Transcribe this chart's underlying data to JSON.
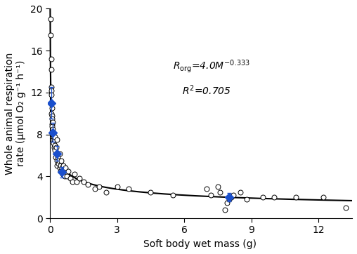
{
  "open_circles_x": [
    0.03,
    0.03,
    0.05,
    0.05,
    0.05,
    0.07,
    0.07,
    0.07,
    0.07,
    0.09,
    0.09,
    0.09,
    0.1,
    0.1,
    0.11,
    0.11,
    0.12,
    0.12,
    0.13,
    0.15,
    0.15,
    0.16,
    0.17,
    0.18,
    0.2,
    0.2,
    0.22,
    0.25,
    0.27,
    0.3,
    0.3,
    0.32,
    0.35,
    0.38,
    0.4,
    0.42,
    0.45,
    0.47,
    0.48,
    0.5,
    0.52,
    0.55,
    0.58,
    0.6,
    0.65,
    0.7,
    0.75,
    0.8,
    0.9,
    1.0,
    1.1,
    1.2,
    1.3,
    1.5,
    1.7,
    2.0,
    2.2,
    2.5,
    3.0,
    3.5,
    4.5,
    5.5,
    7.0,
    7.2,
    7.5,
    7.6,
    7.8,
    7.9,
    8.0,
    8.1,
    8.2,
    8.5,
    8.8,
    9.5,
    10.0,
    11.0,
    12.2,
    13.2
  ],
  "open_circles_y": [
    19.0,
    17.5,
    15.2,
    14.2,
    12.5,
    12.2,
    11.8,
    11.0,
    10.0,
    10.5,
    9.8,
    9.0,
    9.5,
    8.8,
    9.2,
    8.2,
    8.0,
    7.5,
    8.5,
    7.8,
    7.2,
    8.0,
    6.8,
    7.5,
    7.8,
    7.0,
    6.5,
    5.8,
    6.8,
    5.5,
    7.5,
    5.0,
    5.8,
    5.2,
    5.5,
    4.8,
    6.2,
    5.0,
    4.5,
    5.5,
    4.8,
    4.2,
    5.0,
    4.5,
    4.0,
    4.8,
    4.0,
    4.5,
    3.8,
    3.5,
    4.2,
    3.5,
    3.8,
    3.5,
    3.2,
    2.8,
    3.0,
    2.5,
    3.0,
    2.8,
    2.5,
    2.2,
    2.8,
    2.2,
    3.0,
    2.5,
    0.8,
    1.5,
    1.8,
    2.0,
    2.2,
    2.5,
    1.8,
    2.0,
    2.0,
    2.0,
    2.0,
    1.0
  ],
  "blue_diamonds_x": [
    0.07,
    0.12,
    0.3,
    0.52,
    8.0
  ],
  "blue_diamonds_y": [
    11.0,
    8.2,
    6.2,
    4.4,
    2.0
  ],
  "blue_diamonds_yerr": [
    1.5,
    0.9,
    0.7,
    0.5,
    0.4
  ],
  "fit_coeff": 4.0,
  "fit_exp": -0.333,
  "r_squared": 0.705,
  "xlim": [
    -0.1,
    13.5
  ],
  "ylim": [
    0,
    20
  ],
  "xticks": [
    0,
    3,
    6,
    9,
    12
  ],
  "yticks": [
    0,
    4,
    8,
    12,
    16,
    20
  ],
  "xlabel": "Soft body wet mass (g)",
  "ylabel": "Whole animal respiration\nrate (μmol O₂ g⁻¹ h⁻¹)",
  "open_circle_color": "#ffffff",
  "open_circle_edgecolor": "#000000",
  "blue_diamond_color": "#1a4fcc",
  "line_color": "#000000",
  "ann1_x": 5.5,
  "ann1_y": 14.5,
  "ann2_x": 5.9,
  "ann2_y": 12.2,
  "circle_size": 25,
  "diamond_size": 55
}
